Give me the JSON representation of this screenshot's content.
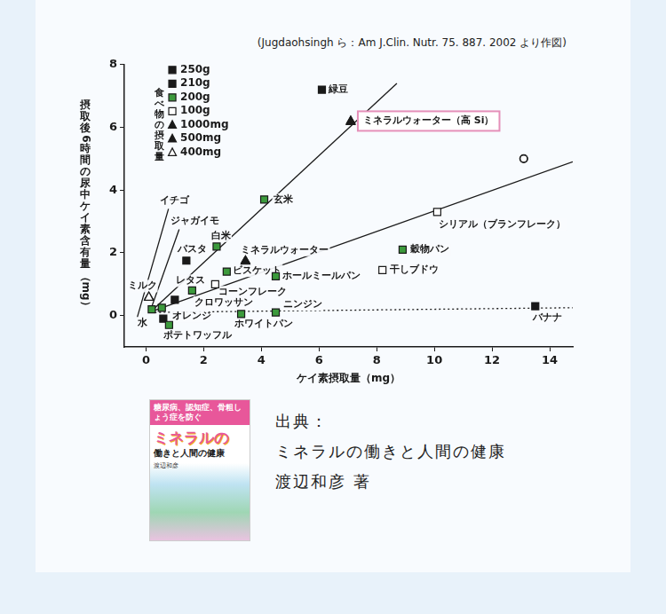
{
  "chart_data": {
    "type": "scatter",
    "subtitle": "(Jugdaohsingh ら：Am J.Clin. Nutr. 75. 887. 2002 より作図)",
    "x_label": "ケイ素摂取量（mg）",
    "y_label": "摂取後6時間の尿中ケイ素含有量（mg）",
    "xlim": [
      -0.75,
      14.8
    ],
    "ylim": [
      -1,
      8
    ],
    "xticks": [
      0,
      2,
      4,
      6,
      8,
      10,
      12,
      14
    ],
    "yticks": [
      0,
      2,
      4,
      6,
      8
    ],
    "grid": false,
    "legend": "top-left",
    "legend_title": "食べ物の摂取量",
    "legend_items": [
      {
        "label": "250g",
        "marker": "square",
        "color": "#1a1a1a"
      },
      {
        "label": "210g",
        "marker": "square",
        "color": "#1a1a1a"
      },
      {
        "label": "200g",
        "marker": "square",
        "color": "#3c9a3c"
      },
      {
        "label": "100g",
        "marker": "open_square",
        "color": "#1a1a1a"
      },
      {
        "label": "1000mg",
        "marker": "triangle",
        "color": "#1a1a1a"
      },
      {
        "label": "500mg",
        "marker": "triangle",
        "color": "#1a1a1a"
      },
      {
        "label": "400mg",
        "marker": "open_triangle",
        "color": "#1a1a1a"
      }
    ],
    "points": [
      {
        "label": "緑豆",
        "x": 6.1,
        "y": 7.2,
        "marker": "square",
        "color": "#1a1a1a"
      },
      {
        "label": "ミネラルウォーター（高 Si）",
        "x": 7.1,
        "y": 6.2,
        "marker": "triangle",
        "color": "#1a1a1a"
      },
      {
        "label": null,
        "x": 13.1,
        "y": 5.0,
        "marker": "open_circle",
        "color": "#1a1a1a"
      },
      {
        "label": "玄米",
        "x": 4.1,
        "y": 3.7,
        "marker": "square",
        "color": "#3c9a3c"
      },
      {
        "label": "シリアル（ブランフレーク）",
        "x": 10.1,
        "y": 3.3,
        "marker": "open_square",
        "color": "#1a1a1a"
      },
      {
        "label": "白米",
        "x": 2.45,
        "y": 2.2,
        "marker": "square",
        "color": "#3c9a3c"
      },
      {
        "label": "穀物パン",
        "x": 8.9,
        "y": 2.1,
        "marker": "square",
        "color": "#3c9a3c"
      },
      {
        "label": "ミネラルウォーター",
        "x": 3.45,
        "y": 1.75,
        "marker": "triangle",
        "color": "#1a1a1a"
      },
      {
        "label": "パスタ",
        "x": 1.4,
        "y": 1.75,
        "marker": "square",
        "color": "#1a1a1a"
      },
      {
        "label": "ビスケット",
        "x": 2.8,
        "y": 1.4,
        "marker": "square",
        "color": "#3c9a3c"
      },
      {
        "label": "ホールミールパン",
        "x": 4.5,
        "y": 1.25,
        "marker": "square",
        "color": "#3c9a3c"
      },
      {
        "label": "干しブドウ",
        "x": 8.2,
        "y": 1.45,
        "marker": "open_square",
        "color": "#1a1a1a"
      },
      {
        "label": "レタス",
        "x": 1.6,
        "y": 0.8,
        "marker": "square",
        "color": "#3c9a3c"
      },
      {
        "label": "コーンフレーク",
        "x": 2.4,
        "y": 1.0,
        "marker": "open_square",
        "color": "#1a1a1a"
      },
      {
        "label": "ミルク",
        "x": 0.1,
        "y": 0.6,
        "marker": "open_triangle",
        "color": "#1a1a1a"
      },
      {
        "label": "水",
        "x": 0.2,
        "y": 0.2,
        "marker": "square",
        "color": "#3c9a3c"
      },
      {
        "label": null,
        "x": 0.55,
        "y": 0.25,
        "marker": "square",
        "color": "#3c9a3c"
      },
      {
        "label": "オレンジ",
        "x": 0.6,
        "y": -0.1,
        "marker": "square",
        "color": "#1a1a1a"
      },
      {
        "label": "クロワッサン",
        "x": 1.0,
        "y": 0.5,
        "marker": "square",
        "color": "#1a1a1a"
      },
      {
        "label": "ポテトワッフル",
        "x": 0.8,
        "y": -0.3,
        "marker": "square",
        "color": "#3c9a3c"
      },
      {
        "label": "ホワイトパン",
        "x": 3.3,
        "y": 0.05,
        "marker": "square",
        "color": "#3c9a3c"
      },
      {
        "label": "ニンジン",
        "x": 4.5,
        "y": 0.1,
        "marker": "square",
        "color": "#3c9a3c"
      },
      {
        "label": "バナナ",
        "x": 13.5,
        "y": 0.3,
        "marker": "square",
        "color": "#1a1a1a"
      }
    ],
    "lines": [
      {
        "label": null,
        "x": [
          0.2,
          8.7
        ],
        "y": [
          0.15,
          7.4
        ],
        "line_style": "solid",
        "color": "#1a1a1a"
      },
      {
        "label": null,
        "x": [
          0.25,
          14.8
        ],
        "y": [
          0.15,
          4.9
        ],
        "line_style": "solid",
        "color": "#1a1a1a"
      },
      {
        "label": null,
        "x": [
          0.15,
          14.8
        ],
        "y": [
          0.1,
          0.25
        ],
        "line_style": "dotted",
        "color": "#1a1a1a"
      },
      {
        "label": "イチゴ",
        "x": [
          -0.3,
          0.78
        ],
        "y": [
          -0.05,
          3.4
        ],
        "line_style": "solid",
        "color": "#1a1a1a"
      },
      {
        "label": "ジャガイモ",
        "x": [
          0.15,
          1.15
        ],
        "y": [
          0.15,
          2.75
        ],
        "line_style": "solid",
        "color": "#1a1a1a"
      }
    ]
  },
  "source": {
    "label": "出典：",
    "title": "ミネラルの働きと人間の健康",
    "author": "渡辺和彦 著",
    "cover": {
      "banner": "糖尿病、認知症、骨粗しょう症を防ぐ",
      "title": "ミネラルの",
      "subtitle": "働きと人間の健康",
      "author": "渡辺和彦"
    }
  }
}
